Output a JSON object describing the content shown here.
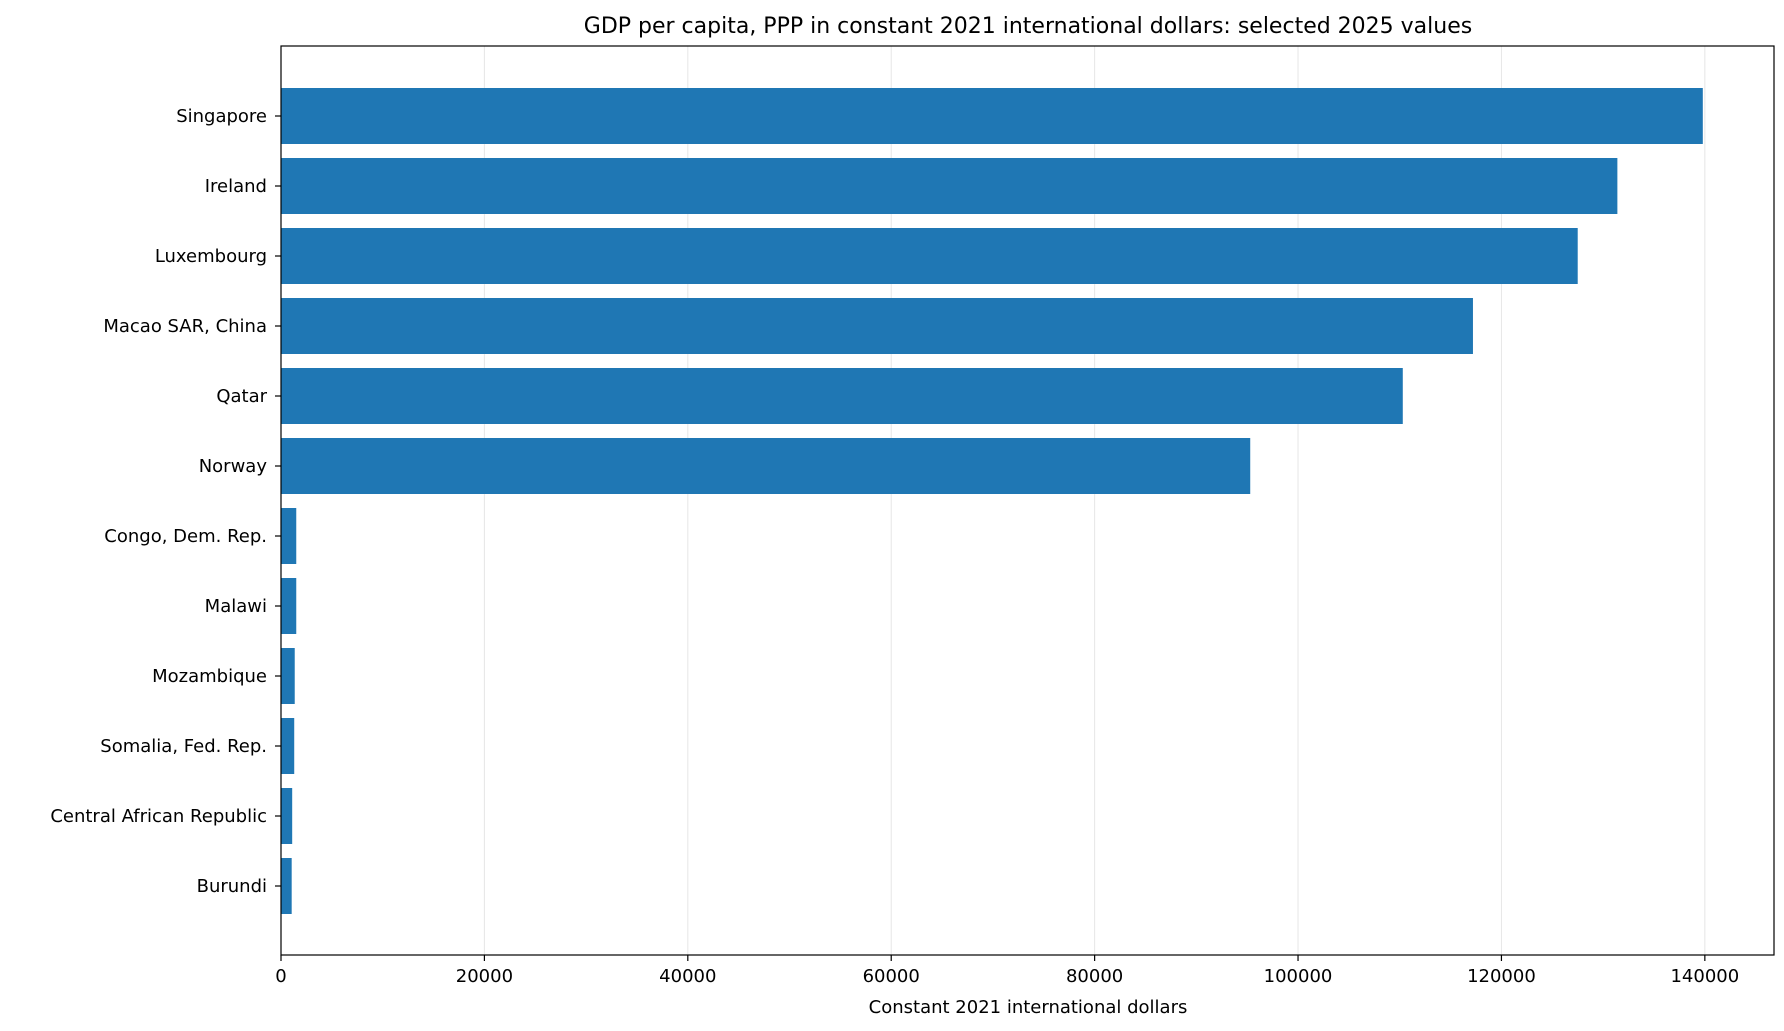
{
  "chart_data": {
    "type": "bar",
    "orientation": "horizontal",
    "title": "GDP per capita, PPP in constant 2021 international dollars: selected 2025 values",
    "xlabel": "Constant 2021 international dollars",
    "ylabel": "",
    "xlim": [
      0,
      146800
    ],
    "xticks": [
      "0",
      "20000",
      "40000",
      "60000",
      "80000",
      "100000",
      "120000",
      "140000"
    ],
    "grid": "vertical",
    "color": "#1f77b4",
    "categories": [
      "Singapore",
      "Ireland",
      "Luxembourg",
      "Macao SAR, China",
      "Qatar",
      "Norway",
      "Congo, Dem. Rep.",
      "Malawi",
      "Mozambique",
      "Somalia, Fed. Rep.",
      "Central African Republic",
      "Burundi"
    ],
    "values": [
      139800,
      131400,
      127500,
      117200,
      110300,
      95300,
      1500,
      1500,
      1350,
      1300,
      1100,
      1050
    ]
  }
}
